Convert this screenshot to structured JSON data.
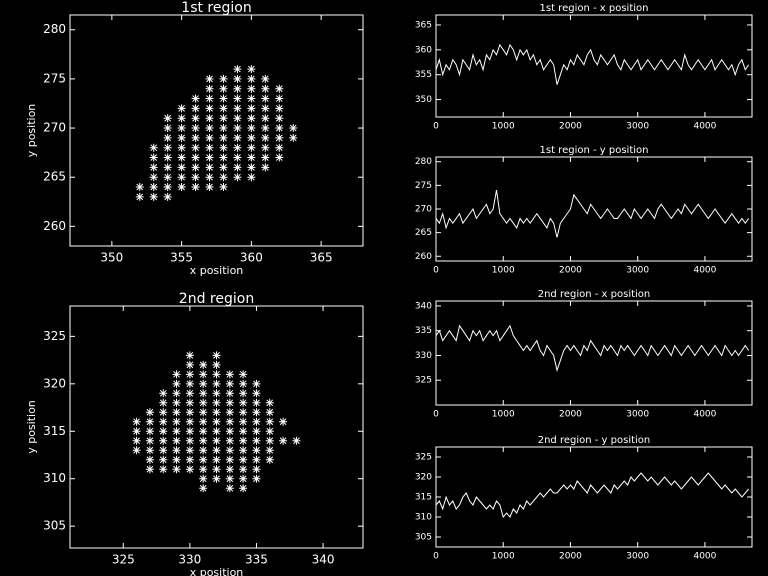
{
  "chart_data": [
    {
      "type": "scatter",
      "title": "1st region",
      "xlabel": "x position",
      "ylabel": "y position",
      "color": "#ffffff",
      "marker": "asterisk",
      "xlim": [
        347,
        368
      ],
      "ylim": [
        258,
        281.5
      ],
      "xticks": [
        350,
        355,
        360,
        365
      ],
      "yticks": [
        260,
        265,
        270,
        275,
        280
      ],
      "x": [
        352,
        352,
        353,
        353,
        353,
        353,
        353,
        353,
        354,
        354,
        354,
        354,
        354,
        354,
        354,
        354,
        354,
        355,
        355,
        355,
        355,
        355,
        355,
        355,
        355,
        355,
        356,
        356,
        356,
        356,
        356,
        356,
        356,
        356,
        356,
        356,
        357,
        357,
        357,
        357,
        357,
        357,
        357,
        357,
        357,
        357,
        357,
        357,
        358,
        358,
        358,
        358,
        358,
        358,
        358,
        358,
        358,
        358,
        358,
        358,
        359,
        359,
        359,
        359,
        359,
        359,
        359,
        359,
        359,
        359,
        359,
        359,
        360,
        360,
        360,
        360,
        360,
        360,
        360,
        360,
        360,
        360,
        360,
        360,
        361,
        361,
        361,
        361,
        361,
        361,
        361,
        361,
        361,
        361,
        362,
        362,
        362,
        362,
        362,
        362,
        362,
        362,
        363,
        363
      ],
      "y": [
        263,
        264,
        263,
        264,
        265,
        266,
        267,
        268,
        263,
        264,
        265,
        266,
        267,
        268,
        269,
        270,
        271,
        264,
        265,
        266,
        267,
        268,
        269,
        270,
        271,
        272,
        264,
        265,
        266,
        267,
        268,
        269,
        270,
        271,
        272,
        273,
        264,
        265,
        266,
        267,
        268,
        269,
        270,
        271,
        272,
        273,
        274,
        275,
        264,
        265,
        266,
        267,
        268,
        269,
        270,
        271,
        272,
        273,
        274,
        275,
        265,
        266,
        267,
        268,
        269,
        270,
        271,
        272,
        273,
        274,
        275,
        276,
        265,
        266,
        267,
        268,
        269,
        270,
        271,
        272,
        273,
        274,
        275,
        276,
        266,
        267,
        268,
        269,
        270,
        271,
        272,
        273,
        274,
        275,
        267,
        268,
        269,
        270,
        271,
        272,
        273,
        274,
        269,
        270
      ]
    },
    {
      "type": "line",
      "title": "1st region - x position",
      "color": "#ffffff",
      "xlim": [
        0,
        4700
      ],
      "ylim": [
        346.5,
        367
      ],
      "xticks": [
        0,
        1000,
        2000,
        3000,
        4000
      ],
      "yticks": [
        350,
        355,
        360,
        365
      ],
      "x": [
        0,
        50,
        100,
        150,
        200,
        250,
        300,
        350,
        400,
        450,
        500,
        550,
        600,
        650,
        700,
        750,
        800,
        850,
        900,
        950,
        1000,
        1050,
        1100,
        1150,
        1200,
        1250,
        1300,
        1350,
        1400,
        1450,
        1500,
        1550,
        1600,
        1650,
        1700,
        1750,
        1800,
        1850,
        1900,
        1950,
        2000,
        2050,
        2100,
        2150,
        2200,
        2250,
        2300,
        2350,
        2400,
        2450,
        2500,
        2550,
        2600,
        2650,
        2700,
        2750,
        2800,
        2850,
        2900,
        2950,
        3000,
        3050,
        3100,
        3150,
        3200,
        3250,
        3300,
        3350,
        3400,
        3450,
        3500,
        3550,
        3600,
        3650,
        3700,
        3750,
        3800,
        3850,
        3900,
        3950,
        4000,
        4050,
        4100,
        4150,
        4200,
        4250,
        4300,
        4350,
        4400,
        4450,
        4500,
        4550,
        4600,
        4650
      ],
      "values": [
        356,
        358,
        355,
        357,
        356,
        358,
        357,
        355,
        358,
        357,
        356,
        359,
        357,
        358,
        356,
        359,
        358,
        360,
        359,
        361,
        360,
        359,
        361,
        360,
        358,
        360,
        359,
        360,
        358,
        359,
        357,
        358,
        356,
        357,
        358,
        357,
        353,
        355,
        357,
        356,
        358,
        357,
        359,
        358,
        357,
        359,
        360,
        358,
        357,
        359,
        358,
        357,
        358,
        359,
        357,
        356,
        358,
        357,
        356,
        357,
        358,
        356,
        357,
        358,
        357,
        356,
        357,
        358,
        357,
        356,
        357,
        358,
        357,
        356,
        359,
        357,
        356,
        357,
        358,
        357,
        356,
        357,
        358,
        356,
        357,
        358,
        357,
        356,
        357,
        355,
        357,
        358,
        356,
        357
      ]
    },
    {
      "type": "line",
      "title": "1st region - y position",
      "color": "#ffffff",
      "xlim": [
        0,
        4700
      ],
      "ylim": [
        259,
        281
      ],
      "xticks": [
        0,
        1000,
        2000,
        3000,
        4000
      ],
      "yticks": [
        260,
        265,
        270,
        275,
        280
      ],
      "x": [
        0,
        50,
        100,
        150,
        200,
        250,
        300,
        350,
        400,
        450,
        500,
        550,
        600,
        650,
        700,
        750,
        800,
        850,
        900,
        950,
        1000,
        1050,
        1100,
        1150,
        1200,
        1250,
        1300,
        1350,
        1400,
        1450,
        1500,
        1550,
        1600,
        1650,
        1700,
        1750,
        1800,
        1850,
        1900,
        1950,
        2000,
        2050,
        2100,
        2150,
        2200,
        2250,
        2300,
        2350,
        2400,
        2450,
        2500,
        2550,
        2600,
        2650,
        2700,
        2750,
        2800,
        2850,
        2900,
        2950,
        3000,
        3050,
        3100,
        3150,
        3200,
        3250,
        3300,
        3350,
        3400,
        3450,
        3500,
        3550,
        3600,
        3650,
        3700,
        3750,
        3800,
        3850,
        3900,
        3950,
        4000,
        4050,
        4100,
        4150,
        4200,
        4250,
        4300,
        4350,
        4400,
        4450,
        4500,
        4550,
        4600,
        4650
      ],
      "values": [
        268,
        267,
        269,
        266,
        268,
        267,
        268,
        269,
        267,
        268,
        269,
        270,
        268,
        269,
        270,
        271,
        269,
        270,
        274,
        269,
        268,
        267,
        268,
        267,
        266,
        268,
        267,
        268,
        267,
        268,
        269,
        268,
        267,
        266,
        268,
        267,
        264,
        267,
        268,
        269,
        270,
        273,
        272,
        271,
        270,
        269,
        271,
        270,
        269,
        268,
        269,
        270,
        269,
        268,
        268,
        269,
        270,
        269,
        268,
        270,
        269,
        268,
        269,
        270,
        269,
        268,
        270,
        271,
        270,
        269,
        268,
        269,
        270,
        269,
        271,
        270,
        269,
        270,
        271,
        270,
        269,
        268,
        269,
        270,
        269,
        268,
        267,
        268,
        269,
        268,
        267,
        268,
        267,
        268
      ]
    },
    {
      "type": "scatter",
      "title": "2nd region",
      "xlabel": "x position",
      "ylabel": "y position",
      "color": "#ffffff",
      "marker": "asterisk",
      "xlim": [
        321,
        343
      ],
      "ylim": [
        302.7,
        328.2
      ],
      "xticks": [
        325,
        330,
        335,
        340
      ],
      "yticks": [
        305,
        310,
        315,
        320,
        325
      ],
      "x": [
        326,
        326,
        326,
        326,
        327,
        327,
        327,
        327,
        327,
        327,
        327,
        328,
        328,
        328,
        328,
        328,
        328,
        328,
        328,
        328,
        329,
        329,
        329,
        329,
        329,
        329,
        329,
        329,
        329,
        329,
        329,
        330,
        330,
        330,
        330,
        330,
        330,
        330,
        330,
        330,
        330,
        330,
        330,
        330,
        331,
        331,
        331,
        331,
        331,
        331,
        331,
        331,
        331,
        331,
        331,
        331,
        331,
        331,
        332,
        332,
        332,
        332,
        332,
        332,
        332,
        332,
        332,
        332,
        332,
        332,
        332,
        332,
        333,
        333,
        333,
        333,
        333,
        333,
        333,
        333,
        333,
        333,
        333,
        333,
        333,
        334,
        334,
        334,
        334,
        334,
        334,
        334,
        334,
        334,
        334,
        334,
        334,
        334,
        335,
        335,
        335,
        335,
        335,
        335,
        335,
        335,
        335,
        335,
        335,
        336,
        336,
        336,
        336,
        336,
        336,
        336,
        337,
        337,
        338
      ],
      "y": [
        313,
        314,
        315,
        316,
        311,
        312,
        313,
        314,
        315,
        316,
        317,
        311,
        312,
        313,
        314,
        315,
        316,
        317,
        318,
        319,
        311,
        312,
        313,
        314,
        315,
        316,
        317,
        318,
        319,
        320,
        321,
        311,
        312,
        313,
        314,
        315,
        316,
        317,
        318,
        319,
        320,
        321,
        322,
        323,
        309,
        310,
        311,
        312,
        313,
        314,
        315,
        316,
        317,
        318,
        319,
        320,
        321,
        322,
        310,
        311,
        312,
        313,
        314,
        315,
        316,
        317,
        318,
        319,
        320,
        321,
        322,
        323,
        309,
        310,
        311,
        312,
        313,
        314,
        315,
        316,
        317,
        318,
        319,
        320,
        321,
        309,
        310,
        311,
        312,
        313,
        314,
        315,
        316,
        317,
        318,
        319,
        320,
        321,
        310,
        311,
        312,
        313,
        314,
        315,
        316,
        317,
        318,
        319,
        320,
        312,
        313,
        314,
        315,
        316,
        317,
        318,
        314,
        316,
        314
      ]
    },
    {
      "type": "line",
      "title": "2nd region - x position",
      "color": "#ffffff",
      "xlim": [
        0,
        4700
      ],
      "ylim": [
        320,
        341
      ],
      "xticks": [
        0,
        1000,
        2000,
        3000,
        4000
      ],
      "yticks": [
        325,
        330,
        335,
        340
      ],
      "x": [
        0,
        50,
        100,
        150,
        200,
        250,
        300,
        350,
        400,
        450,
        500,
        550,
        600,
        650,
        700,
        750,
        800,
        850,
        900,
        950,
        1000,
        1050,
        1100,
        1150,
        1200,
        1250,
        1300,
        1350,
        1400,
        1450,
        1500,
        1550,
        1600,
        1650,
        1700,
        1750,
        1800,
        1850,
        1900,
        1950,
        2000,
        2050,
        2100,
        2150,
        2200,
        2250,
        2300,
        2350,
        2400,
        2450,
        2500,
        2550,
        2600,
        2650,
        2700,
        2750,
        2800,
        2850,
        2900,
        2950,
        3000,
        3050,
        3100,
        3150,
        3200,
        3250,
        3300,
        3350,
        3400,
        3450,
        3500,
        3550,
        3600,
        3650,
        3700,
        3750,
        3800,
        3850,
        3900,
        3950,
        4000,
        4050,
        4100,
        4150,
        4200,
        4250,
        4300,
        4350,
        4400,
        4450,
        4500,
        4550,
        4600,
        4650
      ],
      "values": [
        334,
        335,
        333,
        334,
        335,
        334,
        333,
        336,
        335,
        334,
        333,
        335,
        334,
        335,
        333,
        334,
        335,
        334,
        335,
        333,
        334,
        335,
        336,
        334,
        333,
        332,
        331,
        332,
        331,
        332,
        333,
        331,
        330,
        332,
        331,
        330,
        327,
        329,
        331,
        332,
        331,
        332,
        331,
        330,
        332,
        331,
        333,
        332,
        331,
        330,
        332,
        331,
        332,
        331,
        330,
        332,
        331,
        332,
        331,
        330,
        331,
        332,
        331,
        330,
        332,
        331,
        330,
        331,
        332,
        331,
        330,
        332,
        331,
        330,
        331,
        332,
        331,
        330,
        331,
        332,
        331,
        330,
        331,
        332,
        331,
        330,
        332,
        331,
        330,
        331,
        330,
        331,
        332,
        331
      ]
    },
    {
      "type": "line",
      "title": "2nd region - y position",
      "color": "#ffffff",
      "xlim": [
        0,
        4700
      ],
      "ylim": [
        302.5,
        327.5
      ],
      "xticks": [
        0,
        1000,
        2000,
        3000,
        4000
      ],
      "yticks": [
        305,
        310,
        315,
        320,
        325
      ],
      "x": [
        0,
        50,
        100,
        150,
        200,
        250,
        300,
        350,
        400,
        450,
        500,
        550,
        600,
        650,
        700,
        750,
        800,
        850,
        900,
        950,
        1000,
        1050,
        1100,
        1150,
        1200,
        1250,
        1300,
        1350,
        1400,
        1450,
        1500,
        1550,
        1600,
        1650,
        1700,
        1750,
        1800,
        1850,
        1900,
        1950,
        2000,
        2050,
        2100,
        2150,
        2200,
        2250,
        2300,
        2350,
        2400,
        2450,
        2500,
        2550,
        2600,
        2650,
        2700,
        2750,
        2800,
        2850,
        2900,
        2950,
        3000,
        3050,
        3100,
        3150,
        3200,
        3250,
        3300,
        3350,
        3400,
        3450,
        3500,
        3550,
        3600,
        3650,
        3700,
        3750,
        3800,
        3850,
        3900,
        3950,
        4000,
        4050,
        4100,
        4150,
        4200,
        4250,
        4300,
        4350,
        4400,
        4450,
        4500,
        4550,
        4600,
        4650
      ],
      "values": [
        313,
        314,
        312,
        315,
        313,
        314,
        312,
        313,
        315,
        316,
        314,
        313,
        315,
        314,
        313,
        312,
        313,
        312,
        314,
        313,
        310,
        311,
        310,
        312,
        311,
        313,
        312,
        314,
        313,
        314,
        315,
        316,
        315,
        316,
        317,
        316,
        316,
        317,
        318,
        317,
        318,
        317,
        319,
        318,
        317,
        316,
        318,
        317,
        316,
        317,
        318,
        317,
        316,
        318,
        317,
        318,
        319,
        318,
        320,
        319,
        320,
        321,
        320,
        319,
        320,
        319,
        318,
        319,
        320,
        319,
        318,
        319,
        318,
        317,
        318,
        319,
        320,
        319,
        318,
        319,
        320,
        321,
        320,
        319,
        318,
        317,
        318,
        317,
        316,
        317,
        316,
        315,
        316,
        317
      ]
    }
  ]
}
